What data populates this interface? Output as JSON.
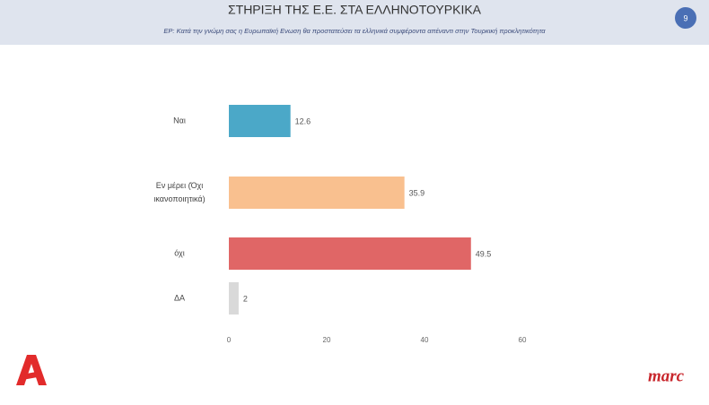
{
  "chart_data": {
    "type": "hbar",
    "title": "ΣΤΗΡΙΞΗ ΤΗΣ Ε.Ε. ΣΤΑ ΕΛΛΗΝΟΤΟΥΡΚΙΚΑ",
    "subtitle": "ΕΡ: Κατά την γνώμη σας η Ευρωπαϊκή Ενωση θα προστατεύσει τα ελληνικά συμφέροντα απέναντι στην Τουρκική προκλητικότητα",
    "categories": [
      "Ναι",
      "Εν μέρει (Όχι ικανοποιητικά)",
      "όχι",
      "ΔΑ"
    ],
    "values": [
      12.6,
      35.9,
      49.5,
      2
    ],
    "colors": [
      "#4ba8c8",
      "#f9c08f",
      "#e06666",
      "#d9d9d9"
    ],
    "xlim": [
      0,
      60
    ],
    "xticks": [
      0,
      20,
      40,
      60
    ],
    "grid": false
  },
  "page_number": 9,
  "source_logo": "marc"
}
